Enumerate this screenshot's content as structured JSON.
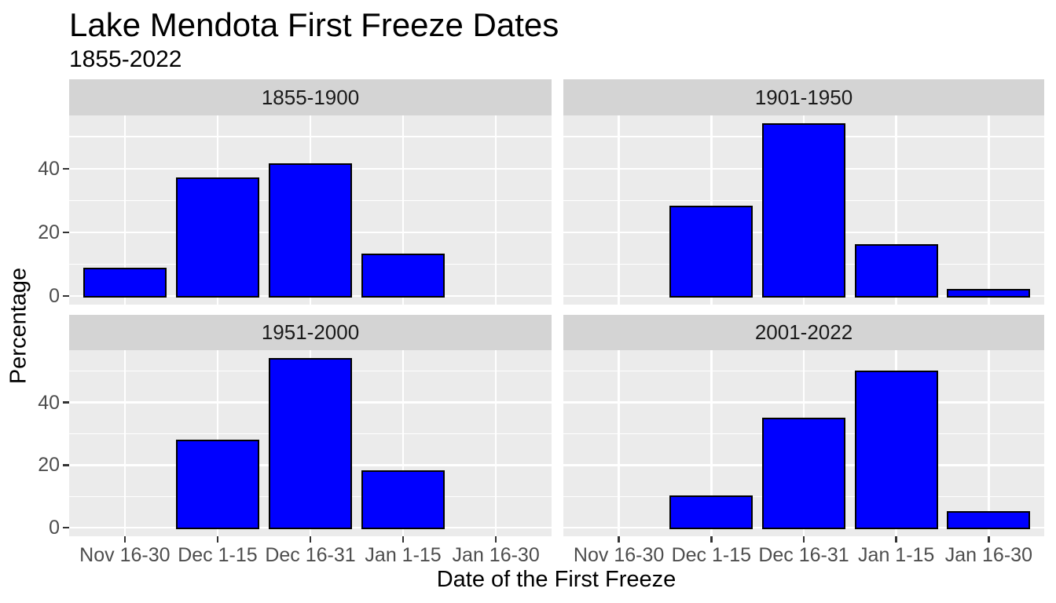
{
  "chart_data": {
    "type": "bar",
    "title": "Lake Mendota First Freeze Dates",
    "subtitle": "1855-2022",
    "xlabel": "Date of the First Freeze",
    "ylabel": "Percentage",
    "categories": [
      "Nov 16-30",
      "Dec 1-15",
      "Dec 16-31",
      "Jan 1-15",
      "Jan 16-30"
    ],
    "facets": [
      {
        "label": "1855-1900",
        "values": [
          8.7,
          37,
          41.3,
          13,
          0
        ]
      },
      {
        "label": "1901-1950",
        "values": [
          0,
          28,
          54,
          16,
          2
        ]
      },
      {
        "label": "1951-2000",
        "values": [
          0,
          28,
          54,
          18,
          0
        ]
      },
      {
        "label": "2001-2022",
        "values": [
          0,
          10,
          35,
          50,
          5
        ]
      }
    ],
    "axes": {
      "y_major_ticks": [
        0,
        20,
        40
      ],
      "y_minor_ticks": [
        10,
        30,
        50
      ],
      "ylim": [
        -2.7,
        56.7
      ],
      "grid": "on",
      "legend": "none"
    },
    "colors": {
      "bar_fill": "#0000FF",
      "bar_stroke": "#000000",
      "panel_bg": "#EBEBEB",
      "strip_bg": "#D4D4D4",
      "grid": "#FFFFFF",
      "tick_label": "#4D4D4D",
      "tick_mark": "#333333"
    }
  }
}
